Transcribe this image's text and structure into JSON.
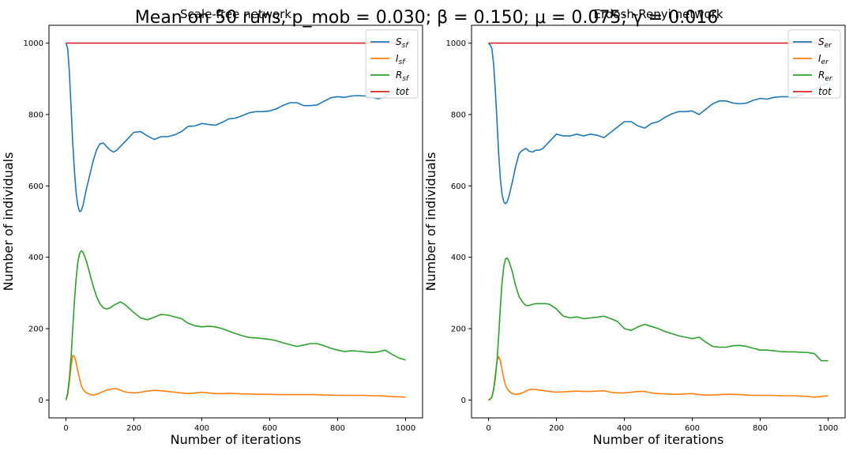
{
  "figure": {
    "suptitle": "Mean on 50 runs, p_mob = 0.030; β = 0.150; μ = 0.075; γ = 0.016"
  },
  "colors": {
    "S": "#1f77b4",
    "I": "#ff7f0e",
    "R": "#2ca02c",
    "tot": "#d62728"
  },
  "chart_data": [
    {
      "type": "line",
      "title": "Scale-free network",
      "xlabel": "Number of iterations",
      "ylabel": "Number of individuals",
      "xlim": [
        -50,
        1050
      ],
      "ylim": [
        -50,
        1050
      ],
      "xticks": [
        0,
        200,
        400,
        600,
        800,
        1000
      ],
      "yticks": [
        0,
        200,
        400,
        600,
        800,
        1000
      ],
      "legend_position": "top-right",
      "series": [
        {
          "name": "S_sf",
          "color_key": "S",
          "x": [
            0,
            5,
            10,
            15,
            20,
            25,
            30,
            35,
            40,
            45,
            50,
            60,
            70,
            80,
            90,
            100,
            110,
            120,
            130,
            140,
            150,
            160,
            170,
            180,
            200,
            220,
            240,
            260,
            280,
            300,
            320,
            340,
            360,
            380,
            400,
            420,
            440,
            460,
            480,
            500,
            520,
            540,
            560,
            580,
            600,
            620,
            640,
            660,
            680,
            700,
            720,
            740,
            760,
            780,
            800,
            820,
            840,
            860,
            880,
            900,
            920,
            940,
            960,
            980,
            1000
          ],
          "y": [
            1000,
            985,
            920,
            820,
            720,
            640,
            580,
            545,
            528,
            530,
            545,
            590,
            630,
            670,
            700,
            718,
            720,
            710,
            700,
            695,
            700,
            710,
            720,
            730,
            750,
            752,
            740,
            730,
            738,
            738,
            743,
            752,
            767,
            768,
            775,
            772,
            770,
            778,
            788,
            790,
            797,
            805,
            808,
            808,
            810,
            816,
            826,
            833,
            833,
            825,
            825,
            827,
            837,
            847,
            850,
            848,
            852,
            853,
            852,
            848,
            844,
            850,
            860,
            870,
            878
          ]
        },
        {
          "name": "I_sf",
          "color_key": "I",
          "x": [
            0,
            5,
            10,
            15,
            20,
            25,
            30,
            35,
            40,
            45,
            50,
            60,
            70,
            80,
            90,
            100,
            110,
            120,
            130,
            140,
            150,
            160,
            170,
            180,
            200,
            220,
            240,
            260,
            280,
            300,
            320,
            340,
            360,
            380,
            400,
            420,
            440,
            460,
            480,
            500,
            520,
            540,
            560,
            580,
            600,
            620,
            640,
            660,
            680,
            700,
            720,
            740,
            760,
            780,
            800,
            820,
            840,
            860,
            880,
            900,
            920,
            940,
            960,
            980,
            1000
          ],
          "y": [
            0,
            15,
            50,
            95,
            125,
            122,
            105,
            82,
            60,
            42,
            30,
            20,
            16,
            14,
            16,
            20,
            24,
            28,
            30,
            32,
            32,
            28,
            24,
            22,
            20,
            22,
            25,
            27,
            26,
            24,
            22,
            20,
            18,
            20,
            22,
            20,
            18,
            18,
            19,
            18,
            17,
            17,
            16,
            16,
            16,
            15,
            15,
            15,
            15,
            15,
            15,
            15,
            14,
            14,
            13,
            13,
            13,
            13,
            13,
            12,
            12,
            11,
            10,
            9,
            8
          ]
        },
        {
          "name": "R_sf",
          "color_key": "R",
          "x": [
            0,
            5,
            10,
            15,
            20,
            25,
            30,
            35,
            40,
            45,
            50,
            60,
            70,
            80,
            90,
            100,
            110,
            120,
            130,
            140,
            150,
            160,
            170,
            180,
            200,
            220,
            240,
            260,
            280,
            300,
            320,
            340,
            360,
            380,
            400,
            420,
            440,
            460,
            480,
            500,
            520,
            540,
            560,
            580,
            600,
            620,
            640,
            660,
            680,
            700,
            720,
            740,
            760,
            780,
            800,
            820,
            840,
            860,
            880,
            900,
            920,
            940,
            960,
            980,
            1000
          ],
          "y": [
            0,
            20,
            60,
            120,
            200,
            280,
            340,
            385,
            410,
            418,
            415,
            390,
            355,
            320,
            290,
            270,
            258,
            255,
            258,
            265,
            270,
            275,
            270,
            262,
            245,
            230,
            225,
            232,
            240,
            238,
            233,
            228,
            215,
            208,
            205,
            207,
            205,
            200,
            193,
            186,
            180,
            175,
            174,
            172,
            170,
            166,
            160,
            155,
            150,
            154,
            158,
            158,
            152,
            145,
            140,
            136,
            138,
            137,
            135,
            133,
            135,
            140,
            128,
            118,
            112
          ]
        },
        {
          "name": "tot",
          "color_key": "tot",
          "x": [
            0,
            1000
          ],
          "y": [
            1000,
            1000
          ]
        }
      ]
    },
    {
      "type": "line",
      "title": "Erdosh-Renyi network",
      "xlabel": "Number of iterations",
      "ylabel": "Number of individuals",
      "xlim": [
        -50,
        1050
      ],
      "ylim": [
        -50,
        1050
      ],
      "xticks": [
        0,
        200,
        400,
        600,
        800,
        1000
      ],
      "yticks": [
        0,
        200,
        400,
        600,
        800,
        1000
      ],
      "legend_position": "top-right",
      "series": [
        {
          "name": "S_er",
          "color_key": "S",
          "x": [
            0,
            5,
            10,
            15,
            20,
            25,
            30,
            35,
            40,
            45,
            50,
            55,
            60,
            70,
            80,
            90,
            100,
            110,
            120,
            130,
            140,
            150,
            160,
            170,
            180,
            200,
            220,
            240,
            260,
            280,
            300,
            320,
            340,
            360,
            380,
            400,
            420,
            440,
            460,
            480,
            500,
            520,
            540,
            560,
            580,
            600,
            620,
            640,
            660,
            680,
            700,
            720,
            740,
            760,
            780,
            800,
            820,
            840,
            860,
            880,
            900,
            920,
            940,
            960,
            980,
            1000
          ],
          "y": [
            1000,
            995,
            985,
            940,
            870,
            780,
            690,
            620,
            575,
            555,
            550,
            555,
            570,
            610,
            655,
            690,
            700,
            705,
            697,
            695,
            700,
            700,
            705,
            715,
            725,
            745,
            740,
            740,
            745,
            740,
            745,
            742,
            735,
            750,
            765,
            780,
            780,
            768,
            762,
            775,
            780,
            792,
            802,
            808,
            808,
            810,
            800,
            815,
            830,
            838,
            838,
            832,
            830,
            832,
            840,
            845,
            843,
            848,
            850,
            850,
            848,
            855,
            862,
            870,
            880,
            888
          ]
        },
        {
          "name": "I_er",
          "color_key": "I",
          "x": [
            0,
            5,
            10,
            15,
            20,
            25,
            30,
            35,
            40,
            45,
            50,
            55,
            60,
            70,
            80,
            90,
            100,
            110,
            120,
            130,
            140,
            150,
            160,
            170,
            180,
            200,
            220,
            240,
            260,
            280,
            300,
            320,
            340,
            360,
            380,
            400,
            420,
            440,
            460,
            480,
            500,
            520,
            540,
            560,
            580,
            600,
            620,
            640,
            660,
            680,
            700,
            720,
            740,
            760,
            780,
            800,
            820,
            840,
            860,
            880,
            900,
            920,
            940,
            960,
            980,
            1000
          ],
          "y": [
            0,
            2,
            8,
            30,
            70,
            110,
            122,
            110,
            85,
            60,
            42,
            32,
            25,
            18,
            16,
            17,
            20,
            25,
            29,
            30,
            30,
            28,
            27,
            25,
            24,
            22,
            23,
            24,
            25,
            24,
            24,
            25,
            26,
            22,
            20,
            20,
            22,
            24,
            24,
            20,
            18,
            17,
            16,
            16,
            17,
            18,
            15,
            14,
            14,
            15,
            16,
            16,
            15,
            14,
            13,
            13,
            13,
            13,
            12,
            12,
            12,
            11,
            10,
            8,
            10,
            12
          ]
        },
        {
          "name": "R_er",
          "color_key": "R",
          "x": [
            0,
            5,
            10,
            15,
            20,
            25,
            30,
            35,
            40,
            45,
            50,
            55,
            60,
            70,
            80,
            90,
            100,
            110,
            120,
            130,
            140,
            150,
            160,
            170,
            180,
            200,
            220,
            240,
            260,
            280,
            300,
            320,
            340,
            360,
            380,
            400,
            420,
            440,
            460,
            480,
            500,
            520,
            540,
            560,
            580,
            600,
            620,
            640,
            660,
            680,
            700,
            720,
            740,
            760,
            780,
            800,
            820,
            840,
            860,
            880,
            900,
            920,
            940,
            960,
            980,
            1000
          ],
          "y": [
            0,
            3,
            8,
            30,
            60,
            110,
            180,
            260,
            330,
            375,
            395,
            398,
            390,
            360,
            320,
            290,
            275,
            265,
            265,
            268,
            270,
            270,
            270,
            270,
            268,
            255,
            235,
            230,
            233,
            228,
            230,
            232,
            235,
            228,
            220,
            200,
            195,
            205,
            212,
            206,
            200,
            192,
            186,
            180,
            176,
            172,
            176,
            162,
            150,
            148,
            148,
            152,
            153,
            150,
            145,
            140,
            140,
            138,
            136,
            135,
            135,
            134,
            133,
            130,
            110,
            110
          ]
        },
        {
          "name": "tot",
          "color_key": "tot",
          "x": [
            0,
            1000
          ],
          "y": [
            1000,
            1000
          ]
        }
      ]
    }
  ]
}
